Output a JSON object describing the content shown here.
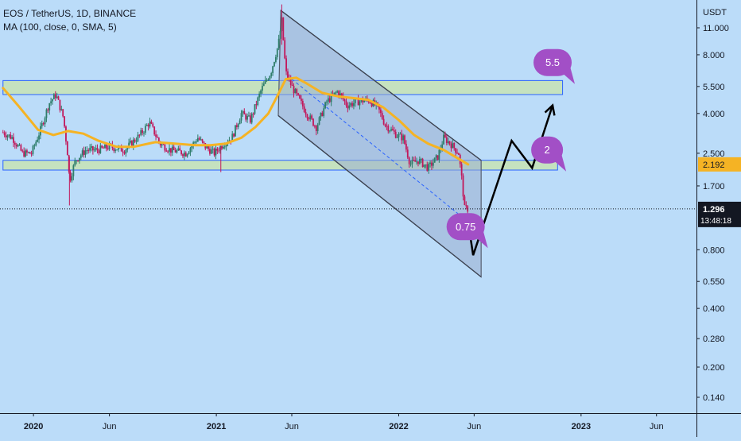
{
  "header": {
    "symbol_line": "EOS / TetherUS, 1D, BINANCE",
    "indicator_line": "MA (100, close, 0, SMA, 5)"
  },
  "chart_data": {
    "type": "candlestick",
    "scale": "log",
    "currency_label": "USDT",
    "y_ticks": [
      "11.000",
      "8.000",
      "5.500",
      "4.000",
      "2.500",
      "1.700",
      "0.800",
      "0.550",
      "0.400",
      "0.280",
      "0.200",
      "0.140"
    ],
    "x_ticks": [
      "2020",
      "Jun",
      "2021",
      "Jun",
      "2022",
      "Jun",
      "2023",
      "Jun"
    ],
    "ma_label": "2.192",
    "last_price": "1.296",
    "countdown": "13:48:18",
    "annotations": [
      "5.5",
      "2",
      "0.75"
    ],
    "colors": {
      "background": "#bbdcf9",
      "up_candle": "#2e7d6a",
      "down_candle": "#c2185b",
      "moving_average": "#f5b324",
      "zone_fill": "#c7e3b5",
      "zone_border": "#2962ff",
      "channel_fill": "#9aaed0",
      "bubble": "#a24fc6",
      "projection": "#000000"
    },
    "price_path": [
      {
        "date": "2019-11-01",
        "price": 3.2
      },
      {
        "date": "2019-11-20",
        "price": 3.0
      },
      {
        "date": "2019-12-10",
        "price": 2.5
      },
      {
        "date": "2019-12-28",
        "price": 2.5
      },
      {
        "date": "2020-01-15",
        "price": 3.3
      },
      {
        "date": "2020-02-01",
        "price": 4.5
      },
      {
        "date": "2020-02-15",
        "price": 5.0
      },
      {
        "date": "2020-03-01",
        "price": 3.8
      },
      {
        "date": "2020-03-10",
        "price": 2.4
      },
      {
        "date": "2020-03-13",
        "price": 1.8
      },
      {
        "date": "2020-03-25",
        "price": 2.3
      },
      {
        "date": "2020-04-15",
        "price": 2.6
      },
      {
        "date": "2020-05-10",
        "price": 2.6
      },
      {
        "date": "2020-06-01",
        "price": 2.7
      },
      {
        "date": "2020-07-01",
        "price": 2.6
      },
      {
        "date": "2020-08-01",
        "price": 3.1
      },
      {
        "date": "2020-08-20",
        "price": 3.6
      },
      {
        "date": "2020-09-10",
        "price": 2.8
      },
      {
        "date": "2020-10-01",
        "price": 2.6
      },
      {
        "date": "2020-11-01",
        "price": 2.5
      },
      {
        "date": "2020-11-25",
        "price": 3.0
      },
      {
        "date": "2020-12-10",
        "price": 2.7
      },
      {
        "date": "2020-12-28",
        "price": 2.5
      },
      {
        "date": "2021-01-15",
        "price": 2.8
      },
      {
        "date": "2021-02-01",
        "price": 3.0
      },
      {
        "date": "2021-02-20",
        "price": 4.0
      },
      {
        "date": "2021-03-10",
        "price": 3.7
      },
      {
        "date": "2021-04-01",
        "price": 5.3
      },
      {
        "date": "2021-04-20",
        "price": 6.5
      },
      {
        "date": "2021-05-05",
        "price": 9.0
      },
      {
        "date": "2021-05-12",
        "price": 12.0
      },
      {
        "date": "2021-05-20",
        "price": 6.5
      },
      {
        "date": "2021-06-01",
        "price": 5.5
      },
      {
        "date": "2021-06-20",
        "price": 4.5
      },
      {
        "date": "2021-07-01",
        "price": 4.0
      },
      {
        "date": "2021-07-20",
        "price": 3.4
      },
      {
        "date": "2021-08-10",
        "price": 4.6
      },
      {
        "date": "2021-09-01",
        "price": 5.2
      },
      {
        "date": "2021-09-20",
        "price": 4.4
      },
      {
        "date": "2021-10-10",
        "price": 4.6
      },
      {
        "date": "2021-11-01",
        "price": 4.7
      },
      {
        "date": "2021-11-20",
        "price": 4.3
      },
      {
        "date": "2021-12-05",
        "price": 3.5
      },
      {
        "date": "2021-12-28",
        "price": 3.1
      },
      {
        "date": "2022-01-10",
        "price": 3.0
      },
      {
        "date": "2022-01-24",
        "price": 2.2
      },
      {
        "date": "2022-02-10",
        "price": 2.3
      },
      {
        "date": "2022-03-01",
        "price": 2.1
      },
      {
        "date": "2022-03-20",
        "price": 2.4
      },
      {
        "date": "2022-04-01",
        "price": 3.0
      },
      {
        "date": "2022-04-15",
        "price": 2.8
      },
      {
        "date": "2022-05-01",
        "price": 2.5
      },
      {
        "date": "2022-05-09",
        "price": 1.7
      },
      {
        "date": "2022-05-12",
        "price": 1.3
      },
      {
        "date": "2022-05-20",
        "price": 1.296
      }
    ],
    "moving_average": [
      {
        "date": "2019-11-01",
        "price": 5.4
      },
      {
        "date": "2019-12-01",
        "price": 4.4
      },
      {
        "date": "2020-01-10",
        "price": 3.3
      },
      {
        "date": "2020-02-10",
        "price": 3.1
      },
      {
        "date": "2020-03-10",
        "price": 3.25
      },
      {
        "date": "2020-04-10",
        "price": 3.15
      },
      {
        "date": "2020-05-10",
        "price": 2.9
      },
      {
        "date": "2020-06-15",
        "price": 2.7
      },
      {
        "date": "2020-07-20",
        "price": 2.7
      },
      {
        "date": "2020-09-01",
        "price": 2.85
      },
      {
        "date": "2020-10-10",
        "price": 2.8
      },
      {
        "date": "2020-11-20",
        "price": 2.75
      },
      {
        "date": "2020-12-20",
        "price": 2.75
      },
      {
        "date": "2021-01-20",
        "price": 2.8
      },
      {
        "date": "2021-02-20",
        "price": 3.0
      },
      {
        "date": "2021-03-20",
        "price": 3.4
      },
      {
        "date": "2021-04-15",
        "price": 4.0
      },
      {
        "date": "2021-05-01",
        "price": 4.8
      },
      {
        "date": "2021-05-20",
        "price": 6.0
      },
      {
        "date": "2021-06-10",
        "price": 6.1
      },
      {
        "date": "2021-07-01",
        "price": 5.7
      },
      {
        "date": "2021-08-01",
        "price": 5.1
      },
      {
        "date": "2021-09-01",
        "price": 4.9
      },
      {
        "date": "2021-10-01",
        "price": 4.8
      },
      {
        "date": "2021-11-01",
        "price": 4.7
      },
      {
        "date": "2021-12-01",
        "price": 4.3
      },
      {
        "date": "2022-01-01",
        "price": 3.7
      },
      {
        "date": "2022-02-01",
        "price": 3.1
      },
      {
        "date": "2022-03-01",
        "price": 2.8
      },
      {
        "date": "2022-04-01",
        "price": 2.6
      },
      {
        "date": "2022-05-20",
        "price": 2.192
      }
    ],
    "zones": [
      {
        "from": "2019-11-01",
        "to": "2022-11-25",
        "low": 5.0,
        "high": 5.9
      },
      {
        "from": "2019-11-01",
        "to": "2022-11-15",
        "low": 2.05,
        "high": 2.3
      }
    ],
    "channel": {
      "upper": [
        {
          "date": "2021-05-10",
          "price": 13.5
        },
        {
          "date": "2022-06-15",
          "price": 2.3
        }
      ],
      "lower": [
        {
          "date": "2021-05-05",
          "price": 3.9
        },
        {
          "date": "2022-06-15",
          "price": 0.58
        }
      ]
    },
    "dashed_trend": [
      {
        "date": "2021-06-01",
        "price": 6.0
      },
      {
        "date": "2022-06-01",
        "price": 1.05
      }
    ],
    "projection": [
      {
        "date": "2022-05-18",
        "price": 1.2
      },
      {
        "date": "2022-05-30",
        "price": 0.75
      },
      {
        "date": "2022-08-15",
        "price": 2.9
      },
      {
        "date": "2022-09-25",
        "price": 2.1
      },
      {
        "date": "2022-11-05",
        "price": 4.4
      }
    ],
    "bubbles": [
      {
        "text": "5.5",
        "date": "2022-11-05",
        "price": 7.3
      },
      {
        "text": "2",
        "date": "2022-10-25",
        "price": 2.6
      },
      {
        "text": "0.75",
        "date": "2022-05-15",
        "price": 1.05
      }
    ]
  }
}
